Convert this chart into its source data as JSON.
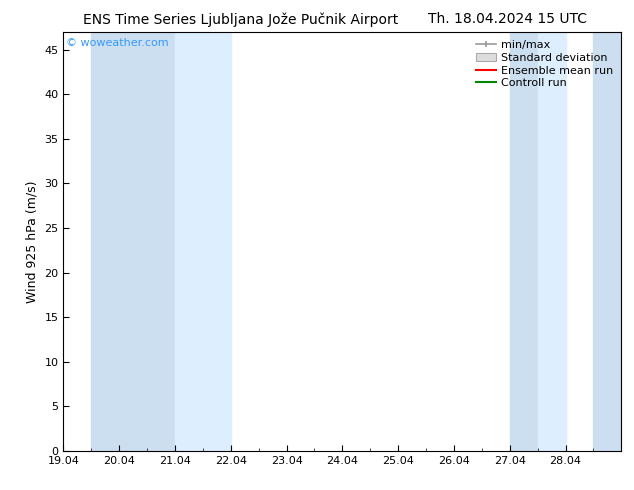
{
  "title_left": "ENS Time Series Ljubljana Jože Pučnik Airport",
  "title_right": "Th. 18.04.2024 15 UTC",
  "ylabel": "Wind 925 hPa (m/s)",
  "watermark": "© woweather.com",
  "watermark_color": "#3399ff",
  "background_color": "#ffffff",
  "plot_background_color": "#ffffff",
  "ylim": [
    0,
    47
  ],
  "yticks": [
    0,
    5,
    10,
    15,
    20,
    25,
    30,
    35,
    40,
    45
  ],
  "xlim": [
    19.0,
    29.0
  ],
  "xtick_positions": [
    19,
    20,
    21,
    22,
    23,
    24,
    25,
    26,
    27,
    28
  ],
  "xtick_labels": [
    "19.04",
    "20.04",
    "21.04",
    "22.04",
    "23.04",
    "24.04",
    "25.04",
    "26.04",
    "27.04",
    "28.04"
  ],
  "shaded_bands": [
    {
      "x_start": 19.5,
      "x_end": 21.0,
      "color": "#ccdff0"
    },
    {
      "x_start": 21.0,
      "x_end": 22.0,
      "color": "#ddeeff"
    },
    {
      "x_start": 27.0,
      "x_end": 27.5,
      "color": "#ccdff0"
    },
    {
      "x_start": 27.5,
      "x_end": 28.0,
      "color": "#ddeeff"
    },
    {
      "x_start": 28.5,
      "x_end": 29.0,
      "color": "#ccdff0"
    }
  ],
  "legend_entries": [
    {
      "label": "min/max",
      "color": "#999999",
      "style": "minmax"
    },
    {
      "label": "Standard deviation",
      "color": "#cccccc",
      "style": "stddev"
    },
    {
      "label": "Ensemble mean run",
      "color": "#ff0000",
      "style": "line"
    },
    {
      "label": "Controll run",
      "color": "#008800",
      "style": "line"
    }
  ],
  "title_fontsize": 10,
  "axis_label_fontsize": 9,
  "tick_fontsize": 8,
  "legend_fontsize": 8,
  "watermark_fontsize": 8
}
